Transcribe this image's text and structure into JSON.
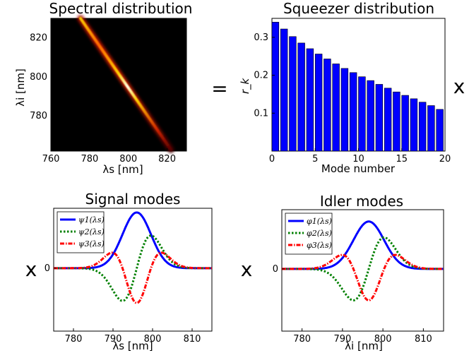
{
  "symbols": {
    "equals": "=",
    "times": "x"
  },
  "chart_data": [
    {
      "id": "spectral",
      "type": "heatmap",
      "title": "Spectral distribution",
      "xlabel": "λs [nm]",
      "ylabel": "λi [nm]",
      "xlim": [
        760,
        830
      ],
      "ylim": [
        762,
        830
      ],
      "xticks": [
        760,
        780,
        800,
        820
      ],
      "yticks": [
        780,
        800,
        820
      ],
      "ridge": {
        "from": [
          776,
          830
        ],
        "to": [
          823,
          762
        ],
        "peak_at": [
          795,
          795
        ]
      },
      "colormap": [
        "#000000",
        "#8b0000",
        "#ff3300",
        "#ffcc00",
        "#ffffe0"
      ]
    },
    {
      "id": "squeezer",
      "type": "bar",
      "title": "Squeezer distribution",
      "xlabel": "Mode number",
      "ylabel": "r_k",
      "xlim": [
        0,
        20
      ],
      "ylim": [
        0,
        0.35
      ],
      "xticks": [
        0,
        5,
        10,
        15,
        20
      ],
      "yticks": [
        0.1,
        0.2,
        0.3
      ],
      "x": [
        0,
        1,
        2,
        3,
        4,
        5,
        6,
        7,
        8,
        9,
        10,
        11,
        12,
        13,
        14,
        15,
        16,
        17,
        18,
        19
      ],
      "values": [
        0.34,
        0.322,
        0.302,
        0.285,
        0.27,
        0.256,
        0.243,
        0.23,
        0.218,
        0.207,
        0.196,
        0.186,
        0.176,
        0.166,
        0.156,
        0.147,
        0.138,
        0.129,
        0.12,
        0.11
      ],
      "color": "#0000ff"
    },
    {
      "id": "signal",
      "type": "line",
      "title": "Signal modes",
      "xlabel": "λs [nm]",
      "xlim": [
        775,
        815
      ],
      "ylim": [
        -1.05,
        1.0
      ],
      "xticks": [
        780,
        790,
        800,
        810
      ],
      "yticks": [
        0
      ],
      "yticklabels": [
        "0"
      ],
      "legend": "top-left",
      "series": [
        {
          "name": "ψ1(λs)",
          "color": "#0000ff",
          "style": "solid",
          "mode": 1,
          "center": 796,
          "width": 3.6,
          "amp": 0.93
        },
        {
          "name": "ψ2(λs)",
          "color": "#008000",
          "style": "dotted",
          "mode": 2,
          "center": 796,
          "width": 3.6,
          "amp": 0.77
        },
        {
          "name": "ψ3(λs)",
          "color": "#ff0000",
          "style": "dashdot",
          "mode": 3,
          "center": 796,
          "width": 3.6,
          "amp": 0.82
        }
      ]
    },
    {
      "id": "idler",
      "type": "line",
      "title": "Idler modes",
      "xlabel": "λi [nm]",
      "xlim": [
        775,
        815
      ],
      "ylim": [
        -1.05,
        1.0
      ],
      "xticks": [
        780,
        790,
        800,
        810
      ],
      "yticks": [
        0
      ],
      "yticklabels": [
        "0"
      ],
      "legend": "top-left",
      "series": [
        {
          "name": "φ1(λs)",
          "color": "#0000ff",
          "style": "solid",
          "mode": 1,
          "center": 796.5,
          "width": 3.8,
          "amp": 0.8
        },
        {
          "name": "φ2(λs)",
          "color": "#008000",
          "style": "dotted",
          "mode": 2,
          "center": 796.5,
          "width": 3.8,
          "amp": 0.75
        },
        {
          "name": "φ3(λs)",
          "color": "#ff0000",
          "style": "dashdot",
          "mode": 3,
          "center": 796.5,
          "width": 3.8,
          "amp": 0.75
        }
      ]
    }
  ]
}
